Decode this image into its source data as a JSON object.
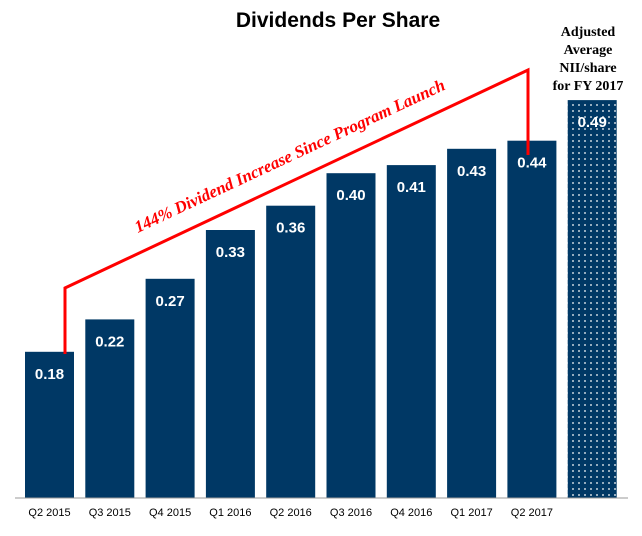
{
  "chart_data": {
    "type": "bar",
    "title": "Dividends Per Share",
    "categories": [
      "Q2 2015",
      "Q3 2015",
      "Q4 2015",
      "Q1 2016",
      "Q2 2016",
      "Q3 2016",
      "Q4 2016",
      "Q1 2017",
      "Q2 2017",
      ""
    ],
    "values": [
      0.18,
      0.22,
      0.27,
      0.33,
      0.36,
      0.4,
      0.41,
      0.43,
      0.44,
      0.49
    ],
    "value_labels": [
      "0.18",
      "0.22",
      "0.27",
      "0.33",
      "0.36",
      "0.40",
      "0.41",
      "0.43",
      "0.44",
      "0.49"
    ],
    "highlight_index": 9,
    "side_note_lines": [
      "Adjusted",
      "Average",
      "NII/share",
      "for FY 2017"
    ],
    "annotation": "144% Dividend Increase Since Program Launch",
    "ylim": [
      0,
      0.5
    ],
    "xlabel": "",
    "ylabel": "",
    "grid": false,
    "colors": {
      "bar": "#003865",
      "highlight_bar": "#003865",
      "highlight_dots": "#ffffff",
      "annotation": "#ff0000",
      "axis": "#999999"
    }
  }
}
